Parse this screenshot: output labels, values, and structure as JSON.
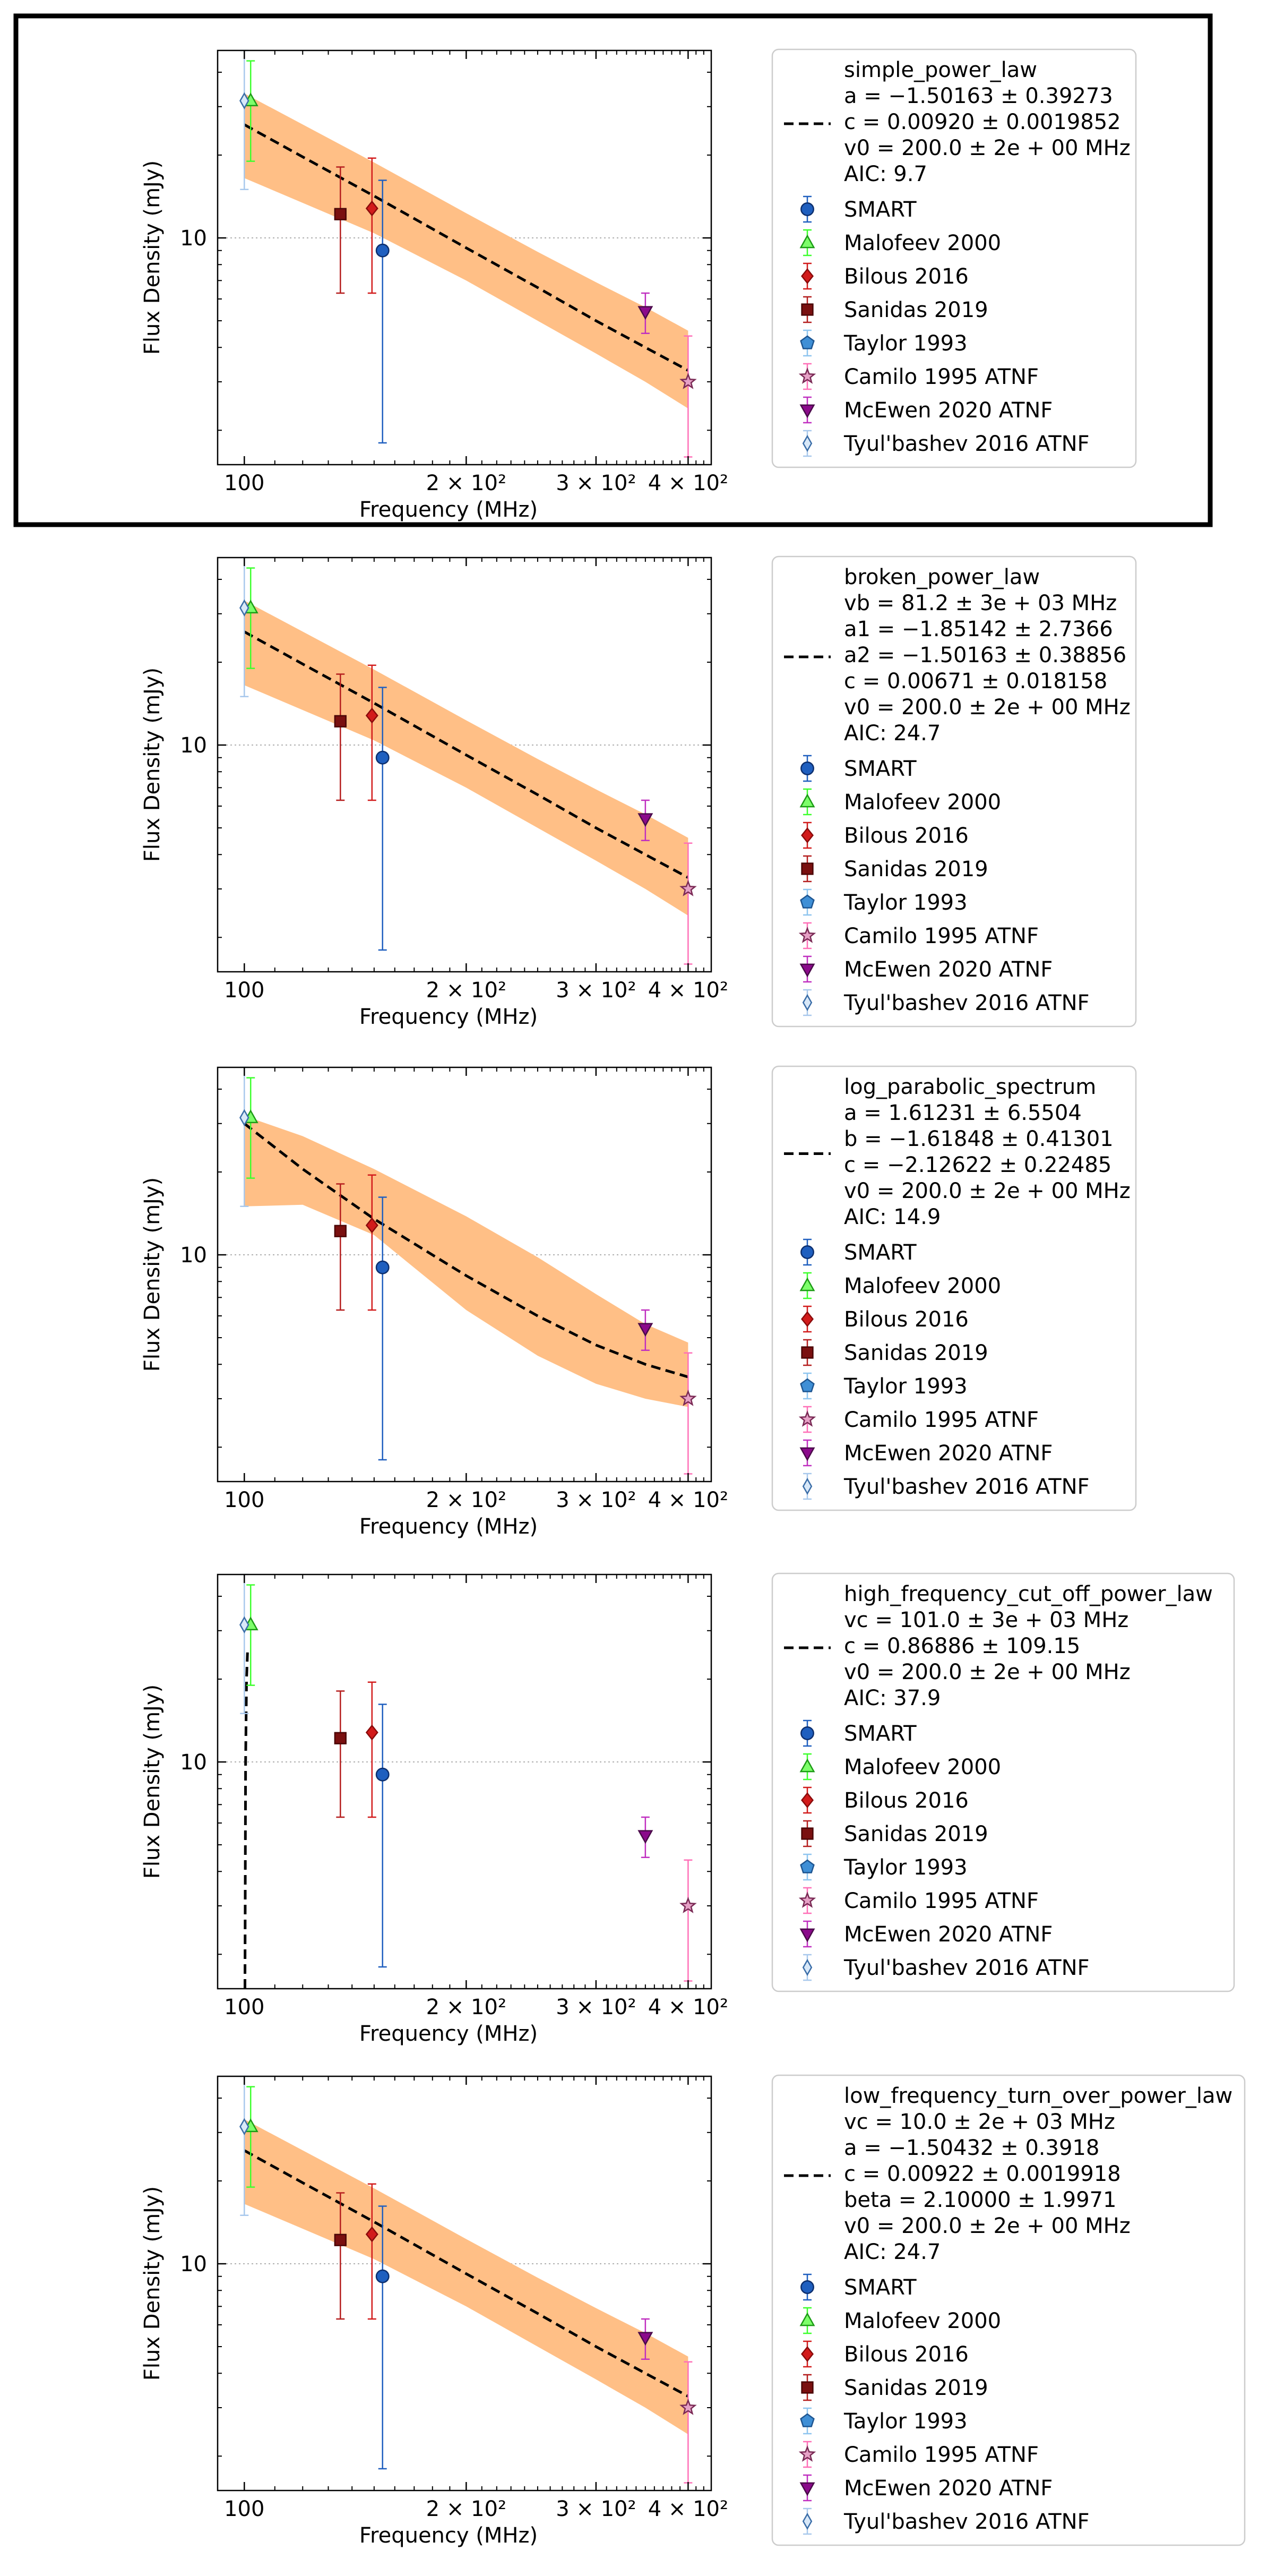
{
  "styles": {
    "band_color": "#ffbf86",
    "fit_color": "#000000",
    "frame_color": "#000000",
    "legend_border": "#cccccc",
    "grid_color": "#b0b0b0",
    "highlight_frame": "#000000"
  },
  "markers": [
    {
      "name": "SMART",
      "shape": "circle",
      "fill": "#1f5fbf",
      "edge": "#0d2f6e",
      "err": "#1f5fbf"
    },
    {
      "name": "Malofeev 2000",
      "shape": "triangle-up",
      "fill": "#7dff6a",
      "edge": "#1c9b15",
      "err": "#3cff2c"
    },
    {
      "name": "Bilous 2016",
      "shape": "diamond",
      "fill": "#d21b1b",
      "edge": "#8a0b0b",
      "err": "#d21b1b"
    },
    {
      "name": "Sanidas 2019",
      "shape": "square",
      "fill": "#7a1010",
      "edge": "#4a0606",
      "err": "#b51e1e"
    },
    {
      "name": "Taylor 1993",
      "shape": "pentagon",
      "fill": "#3f8fd6",
      "edge": "#1e5590",
      "err": "#8ec5ef"
    },
    {
      "name": "Camilo 1995 ATNF",
      "shape": "star",
      "fill": "#e6a1c6",
      "edge": "#7a2a55",
      "err": "#ff6fb7"
    },
    {
      "name": "McEwen 2020 ATNF",
      "shape": "triangle-down",
      "fill": "#8b0a8b",
      "edge": "#4a0a4a",
      "err": "#c02fc0"
    },
    {
      "name": "Tyul'bashev 2016 ATNF",
      "shape": "diamond-thin",
      "fill": "#d8e8f8",
      "edge": "#3b6ea8",
      "err": "#a8c8ec"
    }
  ],
  "chart_data": [
    {
      "type": "scatter",
      "model": "simple_power_law",
      "xlabel": "Frequency (MHz)",
      "ylabel": "Flux Density (mJy)",
      "xscale": "log",
      "yscale": "log",
      "xlim": [
        92,
        430
      ],
      "ylim": [
        1.5,
        48
      ],
      "xticks": [
        "100",
        "2 × 10²",
        "3 × 10²",
        "4 × 10²"
      ],
      "yticks": [
        "10"
      ],
      "grid": "y-major dotted",
      "legend_position": "right, outside",
      "legend_lines": [
        "simple_power_law",
        "a = −1.50163 ± 0.39273",
        "c = 0.00920 ± 0.0019852",
        "v0 = 200.0 ± 2e + 00 MHz",
        "AIC: 9.7"
      ],
      "highlighted": true,
      "fit_curve": [
        [
          100,
          25.8
        ],
        [
          120,
          19.7
        ],
        [
          150,
          14.2
        ],
        [
          200,
          9.2
        ],
        [
          250,
          6.6
        ],
        [
          300,
          5.0
        ],
        [
          350,
          4.0
        ],
        [
          400,
          3.3
        ]
      ],
      "band_upper": [
        [
          100,
          33.5
        ],
        [
          150,
          18.8
        ],
        [
          200,
          12.3
        ],
        [
          250,
          8.9
        ],
        [
          300,
          6.9
        ],
        [
          350,
          5.6
        ],
        [
          400,
          4.6
        ]
      ],
      "band_lower": [
        [
          100,
          16.5
        ],
        [
          150,
          10.4
        ],
        [
          200,
          7.0
        ],
        [
          250,
          5.0
        ],
        [
          300,
          3.8
        ],
        [
          350,
          3.0
        ],
        [
          400,
          2.4
        ]
      ],
      "series": [
        {
          "name": "SMART",
          "points": [
            {
              "x": 154,
              "y": 9.0,
              "lo": 1.8,
              "hi": 16.2
            }
          ]
        },
        {
          "name": "Malofeev 2000",
          "points": [
            {
              "x": 102,
              "y": 31.5,
              "lo": 19.0,
              "hi": 44.0
            }
          ]
        },
        {
          "name": "Bilous 2016",
          "points": [
            {
              "x": 149,
              "y": 12.8,
              "lo": 6.3,
              "hi": 19.5
            }
          ]
        },
        {
          "name": "Sanidas 2019",
          "points": [
            {
              "x": 135,
              "y": 12.2,
              "lo": 6.3,
              "hi": 18.1
            }
          ]
        },
        {
          "name": "Taylor 1993",
          "points": []
        },
        {
          "name": "Camilo 1995 ATNF",
          "points": [
            {
              "x": 400,
              "y": 3.0,
              "lo": 1.6,
              "hi": 4.4
            }
          ]
        },
        {
          "name": "McEwen 2020 ATNF",
          "points": [
            {
              "x": 350,
              "y": 5.4,
              "lo": 4.5,
              "hi": 6.3
            }
          ]
        },
        {
          "name": "Tyul'bashev 2016 ATNF",
          "points": [
            {
              "x": 100,
              "y": 31.5,
              "lo": 15.0,
              "hi": 48.0
            }
          ]
        }
      ]
    },
    {
      "type": "scatter",
      "model": "broken_power_law",
      "xlabel": "Frequency (MHz)",
      "ylabel": "Flux Density (mJy)",
      "xscale": "log",
      "yscale": "log",
      "xlim": [
        92,
        430
      ],
      "ylim": [
        1.5,
        48
      ],
      "xticks": [
        "100",
        "2 × 10²",
        "3 × 10²",
        "4 × 10²"
      ],
      "yticks": [
        "10"
      ],
      "grid": "y-major dotted",
      "legend_position": "right, outside",
      "legend_lines": [
        "broken_power_law",
        "vb = 81.2 ± 3e + 03 MHz",
        "a1 = −1.85142 ± 2.7366",
        "a2 = −1.50163 ± 0.38856",
        "c = 0.00671 ± 0.018158",
        "v0 = 200.0 ± 2e + 00 MHz",
        "AIC: 24.7"
      ],
      "highlighted": false,
      "fit_curve": [
        [
          100,
          25.8
        ],
        [
          120,
          19.7
        ],
        [
          150,
          14.2
        ],
        [
          200,
          9.2
        ],
        [
          250,
          6.6
        ],
        [
          300,
          5.0
        ],
        [
          350,
          4.0
        ],
        [
          400,
          3.3
        ]
      ],
      "band_upper": [
        [
          100,
          33.5
        ],
        [
          150,
          18.8
        ],
        [
          200,
          12.3
        ],
        [
          250,
          8.9
        ],
        [
          300,
          6.9
        ],
        [
          350,
          5.6
        ],
        [
          400,
          4.6
        ]
      ],
      "band_lower": [
        [
          100,
          16.5
        ],
        [
          150,
          10.4
        ],
        [
          200,
          7.0
        ],
        [
          250,
          5.0
        ],
        [
          300,
          3.8
        ],
        [
          350,
          3.0
        ],
        [
          400,
          2.4
        ]
      ],
      "series": [
        {
          "name": "SMART",
          "points": [
            {
              "x": 154,
              "y": 9.0,
              "lo": 1.8,
              "hi": 16.2
            }
          ]
        },
        {
          "name": "Malofeev 2000",
          "points": [
            {
              "x": 102,
              "y": 31.5,
              "lo": 19.0,
              "hi": 44.0
            }
          ]
        },
        {
          "name": "Bilous 2016",
          "points": [
            {
              "x": 149,
              "y": 12.8,
              "lo": 6.3,
              "hi": 19.5
            }
          ]
        },
        {
          "name": "Sanidas 2019",
          "points": [
            {
              "x": 135,
              "y": 12.2,
              "lo": 6.3,
              "hi": 18.1
            }
          ]
        },
        {
          "name": "Taylor 1993",
          "points": []
        },
        {
          "name": "Camilo 1995 ATNF",
          "points": [
            {
              "x": 400,
              "y": 3.0,
              "lo": 1.6,
              "hi": 4.4
            }
          ]
        },
        {
          "name": "McEwen 2020 ATNF",
          "points": [
            {
              "x": 350,
              "y": 5.4,
              "lo": 4.5,
              "hi": 6.3
            }
          ]
        },
        {
          "name": "Tyul'bashev 2016 ATNF",
          "points": [
            {
              "x": 100,
              "y": 31.5,
              "lo": 15.0,
              "hi": 48.0
            }
          ]
        }
      ]
    },
    {
      "type": "scatter",
      "model": "log_parabolic_spectrum",
      "xlabel": "Frequency (MHz)",
      "ylabel": "Flux Density (mJy)",
      "xscale": "log",
      "yscale": "log",
      "xlim": [
        92,
        430
      ],
      "ylim": [
        1.5,
        48
      ],
      "xticks": [
        "100",
        "2 × 10²",
        "3 × 10²",
        "4 × 10²"
      ],
      "yticks": [
        "10"
      ],
      "grid": "y-major dotted",
      "legend_position": "right, outside",
      "legend_lines": [
        "log_parabolic_spectrum",
        "a = 1.61231 ± 6.5504",
        "b = −1.61848 ± 0.41301",
        "c = −2.12622 ± 0.22485",
        "v0 = 200.0 ± 2e + 00 MHz",
        "AIC: 14.9"
      ],
      "highlighted": false,
      "fit_curve": [
        [
          100,
          30.0
        ],
        [
          120,
          20.5
        ],
        [
          150,
          13.5
        ],
        [
          200,
          8.4
        ],
        [
          250,
          6.0
        ],
        [
          300,
          4.7
        ],
        [
          350,
          4.0
        ],
        [
          400,
          3.6
        ]
      ],
      "band_upper": [
        [
          100,
          32.0
        ],
        [
          120,
          27.0
        ],
        [
          150,
          20.5
        ],
        [
          200,
          13.8
        ],
        [
          250,
          9.8
        ],
        [
          300,
          7.2
        ],
        [
          350,
          5.6
        ],
        [
          400,
          4.8
        ]
      ],
      "band_lower": [
        [
          100,
          15.0
        ],
        [
          120,
          15.2
        ],
        [
          150,
          11.8
        ],
        [
          200,
          6.3
        ],
        [
          250,
          4.3
        ],
        [
          300,
          3.4
        ],
        [
          350,
          3.0
        ],
        [
          400,
          2.8
        ]
      ],
      "series": [
        {
          "name": "SMART",
          "points": [
            {
              "x": 154,
              "y": 9.0,
              "lo": 1.8,
              "hi": 16.2
            }
          ]
        },
        {
          "name": "Malofeev 2000",
          "points": [
            {
              "x": 102,
              "y": 31.5,
              "lo": 19.0,
              "hi": 44.0
            }
          ]
        },
        {
          "name": "Bilous 2016",
          "points": [
            {
              "x": 149,
              "y": 12.8,
              "lo": 6.3,
              "hi": 19.5
            }
          ]
        },
        {
          "name": "Sanidas 2019",
          "points": [
            {
              "x": 135,
              "y": 12.2,
              "lo": 6.3,
              "hi": 18.1
            }
          ]
        },
        {
          "name": "Taylor 1993",
          "points": []
        },
        {
          "name": "Camilo 1995 ATNF",
          "points": [
            {
              "x": 400,
              "y": 3.0,
              "lo": 1.6,
              "hi": 4.4
            }
          ]
        },
        {
          "name": "McEwen 2020 ATNF",
          "points": [
            {
              "x": 350,
              "y": 5.4,
              "lo": 4.5,
              "hi": 6.3
            }
          ]
        },
        {
          "name": "Tyul'bashev 2016 ATNF",
          "points": [
            {
              "x": 100,
              "y": 31.5,
              "lo": 15.0,
              "hi": 48.0
            }
          ]
        }
      ]
    },
    {
      "type": "scatter",
      "model": "high_frequency_cut_off_power_law",
      "xlabel": "Frequency (MHz)",
      "ylabel": "Flux Density (mJy)",
      "xscale": "log",
      "yscale": "log",
      "xlim": [
        92,
        430
      ],
      "ylim": [
        1.5,
        48
      ],
      "xticks": [
        "100",
        "2 × 10²",
        "3 × 10²",
        "4 × 10²"
      ],
      "yticks": [
        "10"
      ],
      "grid": "y-major dotted",
      "legend_position": "right, outside",
      "legend_lines": [
        "high_frequency_cut_off_power_law",
        "vc = 101.0 ± 3e + 03 MHz",
        "c = 0.86886 ± 109.15",
        "v0 = 200.0 ± 2e + 00 MHz",
        "AIC: 37.9"
      ],
      "highlighted": false,
      "fit_curve": [
        [
          100.2,
          1.5
        ],
        [
          100.4,
          10.0
        ],
        [
          100.7,
          20.0
        ],
        [
          101.0,
          25.0
        ]
      ],
      "band_upper": [],
      "band_lower": [],
      "series": [
        {
          "name": "SMART",
          "points": [
            {
              "x": 154,
              "y": 9.0,
              "lo": 1.8,
              "hi": 16.2
            }
          ]
        },
        {
          "name": "Malofeev 2000",
          "points": [
            {
              "x": 102,
              "y": 31.5,
              "lo": 19.0,
              "hi": 44.0
            }
          ]
        },
        {
          "name": "Bilous 2016",
          "points": [
            {
              "x": 149,
              "y": 12.8,
              "lo": 6.3,
              "hi": 19.5
            }
          ]
        },
        {
          "name": "Sanidas 2019",
          "points": [
            {
              "x": 135,
              "y": 12.2,
              "lo": 6.3,
              "hi": 18.1
            }
          ]
        },
        {
          "name": "Taylor 1993",
          "points": []
        },
        {
          "name": "Camilo 1995 ATNF",
          "points": [
            {
              "x": 400,
              "y": 3.0,
              "lo": 1.6,
              "hi": 4.4
            }
          ]
        },
        {
          "name": "McEwen 2020 ATNF",
          "points": [
            {
              "x": 350,
              "y": 5.4,
              "lo": 4.5,
              "hi": 6.3
            }
          ]
        },
        {
          "name": "Tyul'bashev 2016 ATNF",
          "points": [
            {
              "x": 100,
              "y": 31.5,
              "lo": 15.0,
              "hi": 48.0
            }
          ]
        }
      ]
    },
    {
      "type": "scatter",
      "model": "low_frequency_turn_over_power_law",
      "xlabel": "Frequency (MHz)",
      "ylabel": "Flux Density (mJy)",
      "xscale": "log",
      "yscale": "log",
      "xlim": [
        92,
        430
      ],
      "ylim": [
        1.5,
        48
      ],
      "xticks": [
        "100",
        "2 × 10²",
        "3 × 10²",
        "4 × 10²"
      ],
      "yticks": [
        "10"
      ],
      "grid": "y-major dotted",
      "legend_position": "right, outside",
      "legend_lines": [
        "low_frequency_turn_over_power_law",
        "vc = 10.0 ± 2e + 03 MHz",
        "a = −1.50432 ± 0.3918",
        "c = 0.00922 ± 0.0019918",
        "beta = 2.10000 ± 1.9971",
        "v0 = 200.0 ± 2e + 00 MHz",
        "AIC: 24.7"
      ],
      "highlighted": false,
      "fit_curve": [
        [
          100,
          25.8
        ],
        [
          120,
          19.7
        ],
        [
          150,
          14.2
        ],
        [
          200,
          9.2
        ],
        [
          250,
          6.6
        ],
        [
          300,
          5.0
        ],
        [
          350,
          4.0
        ],
        [
          400,
          3.3
        ]
      ],
      "band_upper": [
        [
          100,
          33.5
        ],
        [
          150,
          18.8
        ],
        [
          200,
          12.3
        ],
        [
          250,
          8.9
        ],
        [
          300,
          6.9
        ],
        [
          350,
          5.6
        ],
        [
          400,
          4.6
        ]
      ],
      "band_lower": [
        [
          100,
          16.5
        ],
        [
          150,
          10.4
        ],
        [
          200,
          7.0
        ],
        [
          250,
          5.0
        ],
        [
          300,
          3.8
        ],
        [
          350,
          3.0
        ],
        [
          400,
          2.4
        ]
      ],
      "series": [
        {
          "name": "SMART",
          "points": [
            {
              "x": 154,
              "y": 9.0,
              "lo": 1.8,
              "hi": 16.2
            }
          ]
        },
        {
          "name": "Malofeev 2000",
          "points": [
            {
              "x": 102,
              "y": 31.5,
              "lo": 19.0,
              "hi": 44.0
            }
          ]
        },
        {
          "name": "Bilous 2016",
          "points": [
            {
              "x": 149,
              "y": 12.8,
              "lo": 6.3,
              "hi": 19.5
            }
          ]
        },
        {
          "name": "Sanidas 2019",
          "points": [
            {
              "x": 135,
              "y": 12.2,
              "lo": 6.3,
              "hi": 18.1
            }
          ]
        },
        {
          "name": "Taylor 1993",
          "points": []
        },
        {
          "name": "Camilo 1995 ATNF",
          "points": [
            {
              "x": 400,
              "y": 3.0,
              "lo": 1.6,
              "hi": 4.4
            }
          ]
        },
        {
          "name": "McEwen 2020 ATNF",
          "points": [
            {
              "x": 350,
              "y": 5.4,
              "lo": 4.5,
              "hi": 6.3
            }
          ]
        },
        {
          "name": "Tyul'bashev 2016 ATNF",
          "points": [
            {
              "x": 100,
              "y": 31.5,
              "lo": 15.0,
              "hi": 48.0
            }
          ]
        }
      ]
    }
  ]
}
